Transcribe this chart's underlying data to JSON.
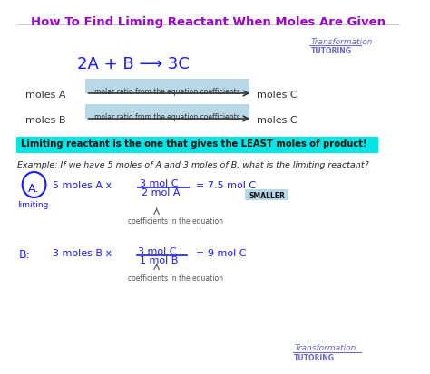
{
  "title": "How To Find Liming Reactant When Moles Are Given",
  "title_color": "#9900cc",
  "background_color": "#ffffff",
  "equation": "2A + B ⟶ 3C",
  "equation_color": "#1a1aff",
  "logo_line1": "Transformation",
  "logo_line2": "TUTORING",
  "logo_color": "#6666cc",
  "arrow_label": "molar ratio from the equation coefficients",
  "arrow_label_bg": "#b8d8e8",
  "arrow_color": "#333333",
  "moles_A_left": "moles A",
  "moles_A_right": "moles C",
  "moles_B_left": "moles B",
  "moles_B_right": "moles C",
  "highlight_box": "Limiting reactant is the one that gives the LEAST moles of product!",
  "highlight_bg": "#00e5e5",
  "example_text": "Example: If we have 5 moles of A and 3 moles of B, what is the limiting reactant?",
  "example_color": "#222222",
  "A_label": "A:",
  "A_circle_color": "#1a1aff",
  "A_calc": "5 moles A x",
  "A_num": "3 mol C",
  "A_den": "2 mol A",
  "A_result": "= 7.5 mol C",
  "A_sub": "SMALLER",
  "A_sub_bg": "#b8d8e8",
  "limiting_label": "limiting",
  "coeff_label_A": "coefficients in the equation",
  "B_label": "B:",
  "B_calc": "3 moles B x",
  "B_num": "3 mol C",
  "B_den": "1 mol B",
  "B_result": "= 9 mol C",
  "coeff_label_B": "coefficients in the equation",
  "handwriting_color": "#1a1aff",
  "text_color": "#333333",
  "logo2_line1": "Transformation",
  "logo2_line2": "TUTORING"
}
